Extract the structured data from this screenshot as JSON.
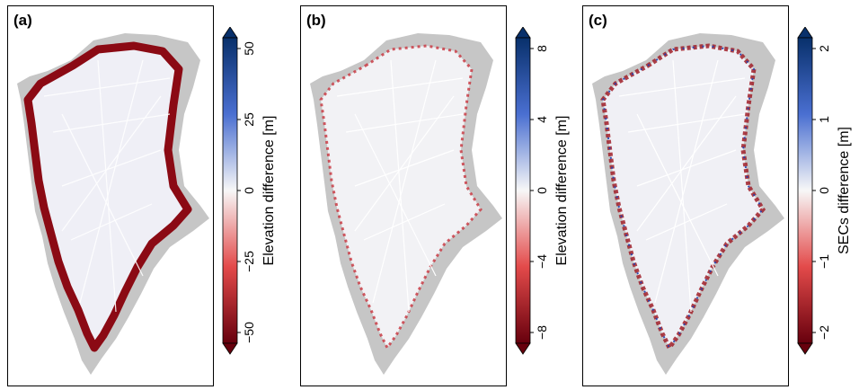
{
  "panels": [
    {
      "label": "(a)",
      "colorbar": {
        "ticks": [
          "50",
          "25",
          "0",
          "−25",
          "−50"
        ],
        "title": "Elevation difference [m]",
        "max": 50
      }
    },
    {
      "label": "(b)",
      "colorbar": {
        "ticks": [
          "8",
          "4",
          "0",
          "−4",
          "−8"
        ],
        "title": "Elevation difference [m]",
        "max": 8
      }
    },
    {
      "label": "(c)",
      "colorbar": {
        "ticks": [
          "2",
          "1",
          "0",
          "−1",
          "−2"
        ],
        "title": "SECs difference [m]",
        "max": 2
      }
    }
  ],
  "colors": {
    "land": "#c6c6c6",
    "positive": "#08306b",
    "negative": "#67000d",
    "neutral": "#f7f7f7"
  }
}
